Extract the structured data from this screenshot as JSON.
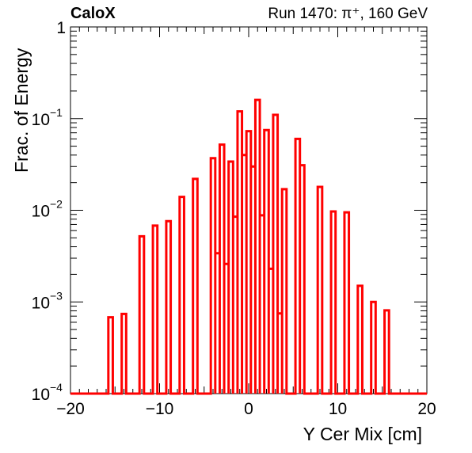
{
  "chart_data": {
    "type": "step-histogram",
    "title_left": "CaloX",
    "title_right": "Run 1470: π⁺, 160 GeV",
    "xlabel": "Y Cer Mix [cm]",
    "ylabel": "Frac. of Energy",
    "xlim": [
      -20,
      20
    ],
    "ylim": [
      0.0001,
      1
    ],
    "yscale": "log",
    "x_ticks": [
      "−20",
      "−10",
      "0",
      "10",
      "20"
    ],
    "x_tick_values": [
      -20,
      -10,
      0,
      10,
      20
    ],
    "y_ticks": [
      {
        "value": 0.0001,
        "base": "10",
        "exp": "−4"
      },
      {
        "value": 0.001,
        "base": "10",
        "exp": "−3"
      },
      {
        "value": 0.01,
        "base": "10",
        "exp": "−2"
      },
      {
        "value": 0.1,
        "base": "10",
        "exp": "−1"
      },
      {
        "value": 1,
        "base": "1",
        "exp": ""
      }
    ],
    "line_color": "#ff0000",
    "bin_width": 0.5,
    "bins": [
      {
        "x": -15.5,
        "y": 0.00068
      },
      {
        "x": -14.0,
        "y": 0.00074
      },
      {
        "x": -12.0,
        "y": 0.0052
      },
      {
        "x": -10.5,
        "y": 0.0068
      },
      {
        "x": -9.0,
        "y": 0.0076
      },
      {
        "x": -7.5,
        "y": 0.014
      },
      {
        "x": -6.0,
        "y": 0.022
      },
      {
        "x": -4.0,
        "y": 0.037
      },
      {
        "x": -3.5,
        "y": 0.0034
      },
      {
        "x": -3.0,
        "y": 0.052
      },
      {
        "x": -2.5,
        "y": 0.0026
      },
      {
        "x": -2.0,
        "y": 0.034
      },
      {
        "x": -1.5,
        "y": 0.0085
      },
      {
        "x": -1.0,
        "y": 0.12
      },
      {
        "x": -0.5,
        "y": 0.04
      },
      {
        "x": 0.0,
        "y": 0.073
      },
      {
        "x": 0.5,
        "y": 0.03
      },
      {
        "x": 1.0,
        "y": 0.16
      },
      {
        "x": 1.5,
        "y": 0.0088
      },
      {
        "x": 2.0,
        "y": 0.075
      },
      {
        "x": 2.5,
        "y": 0.0023
      },
      {
        "x": 3.0,
        "y": 0.11
      },
      {
        "x": 3.5,
        "y": 0.00075
      },
      {
        "x": 4.0,
        "y": 0.017
      },
      {
        "x": 5.5,
        "y": 0.06
      },
      {
        "x": 6.0,
        "y": 0.031
      },
      {
        "x": 8.0,
        "y": 0.018
      },
      {
        "x": 9.5,
        "y": 0.0097
      },
      {
        "x": 11.0,
        "y": 0.0095
      },
      {
        "x": 12.5,
        "y": 0.0015
      },
      {
        "x": 14.0,
        "y": 0.001
      },
      {
        "x": 15.5,
        "y": 0.00081
      }
    ]
  }
}
